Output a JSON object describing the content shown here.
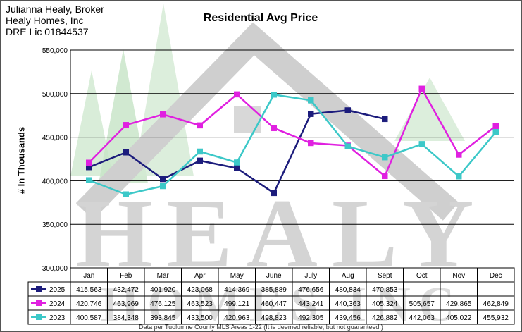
{
  "header": {
    "line1": "Julianna Healy, Broker",
    "line2": "Healy Homes, Inc",
    "line3": "DRE Lic 01844537"
  },
  "watermark": {
    "text": "HEALY",
    "subtext": "HOMES INC",
    "color": "#cfcfcf",
    "tree_color": "#c9e4c9"
  },
  "footer": {
    "note": "Data per Tuolumne County MLS Areas 1-22 (It is deemed reliable, but not guaranteed.)"
  },
  "chart_data": {
    "type": "line",
    "title": "Residential Avg Price",
    "ylabel": "# In Thousands",
    "xlabel": "",
    "ylim": [
      300000,
      550000
    ],
    "yticks": [
      "300,000",
      "350,000",
      "400,000",
      "450,000",
      "500,000",
      "550,000"
    ],
    "grid": true,
    "legend": "table-bottom",
    "categories": [
      "Jan",
      "Feb",
      "Mar",
      "Apr",
      "May",
      "June",
      "July",
      "Aug",
      "Sept",
      "Oct",
      "Nov",
      "Dec"
    ],
    "series": [
      {
        "name": "2025",
        "color": "#1c1c7c",
        "values": [
          415563,
          432472,
          401920,
          423068,
          414369,
          385889,
          476656,
          480834,
          470853,
          null,
          null,
          null
        ],
        "labels": [
          "415,563",
          "432,472",
          "401,920",
          "423,068",
          "414,369",
          "385,889",
          "476,656",
          "480,834",
          "470,853",
          "",
          "",
          ""
        ]
      },
      {
        "name": "2024",
        "color": "#e020e0",
        "values": [
          420746,
          463969,
          476125,
          463523,
          499121,
          460447,
          443241,
          440363,
          405324,
          505657,
          429865,
          462849
        ],
        "labels": [
          "420,746",
          "463,969",
          "476,125",
          "463,523",
          "499,121",
          "460,447",
          "443,241",
          "440,363",
          "405,324",
          "505,657",
          "429,865",
          "462,849"
        ]
      },
      {
        "name": "2023",
        "color": "#3cc8c8",
        "values": [
          400587,
          384348,
          393845,
          433500,
          420963,
          498823,
          492305,
          439456,
          426882,
          442063,
          405022,
          455932
        ],
        "labels": [
          "400,587",
          "384,348",
          "393,845",
          "433,500",
          "420,963",
          "498,823",
          "492,305",
          "439,456",
          "426,882",
          "442,063",
          "405,022",
          "455,932"
        ]
      }
    ]
  }
}
